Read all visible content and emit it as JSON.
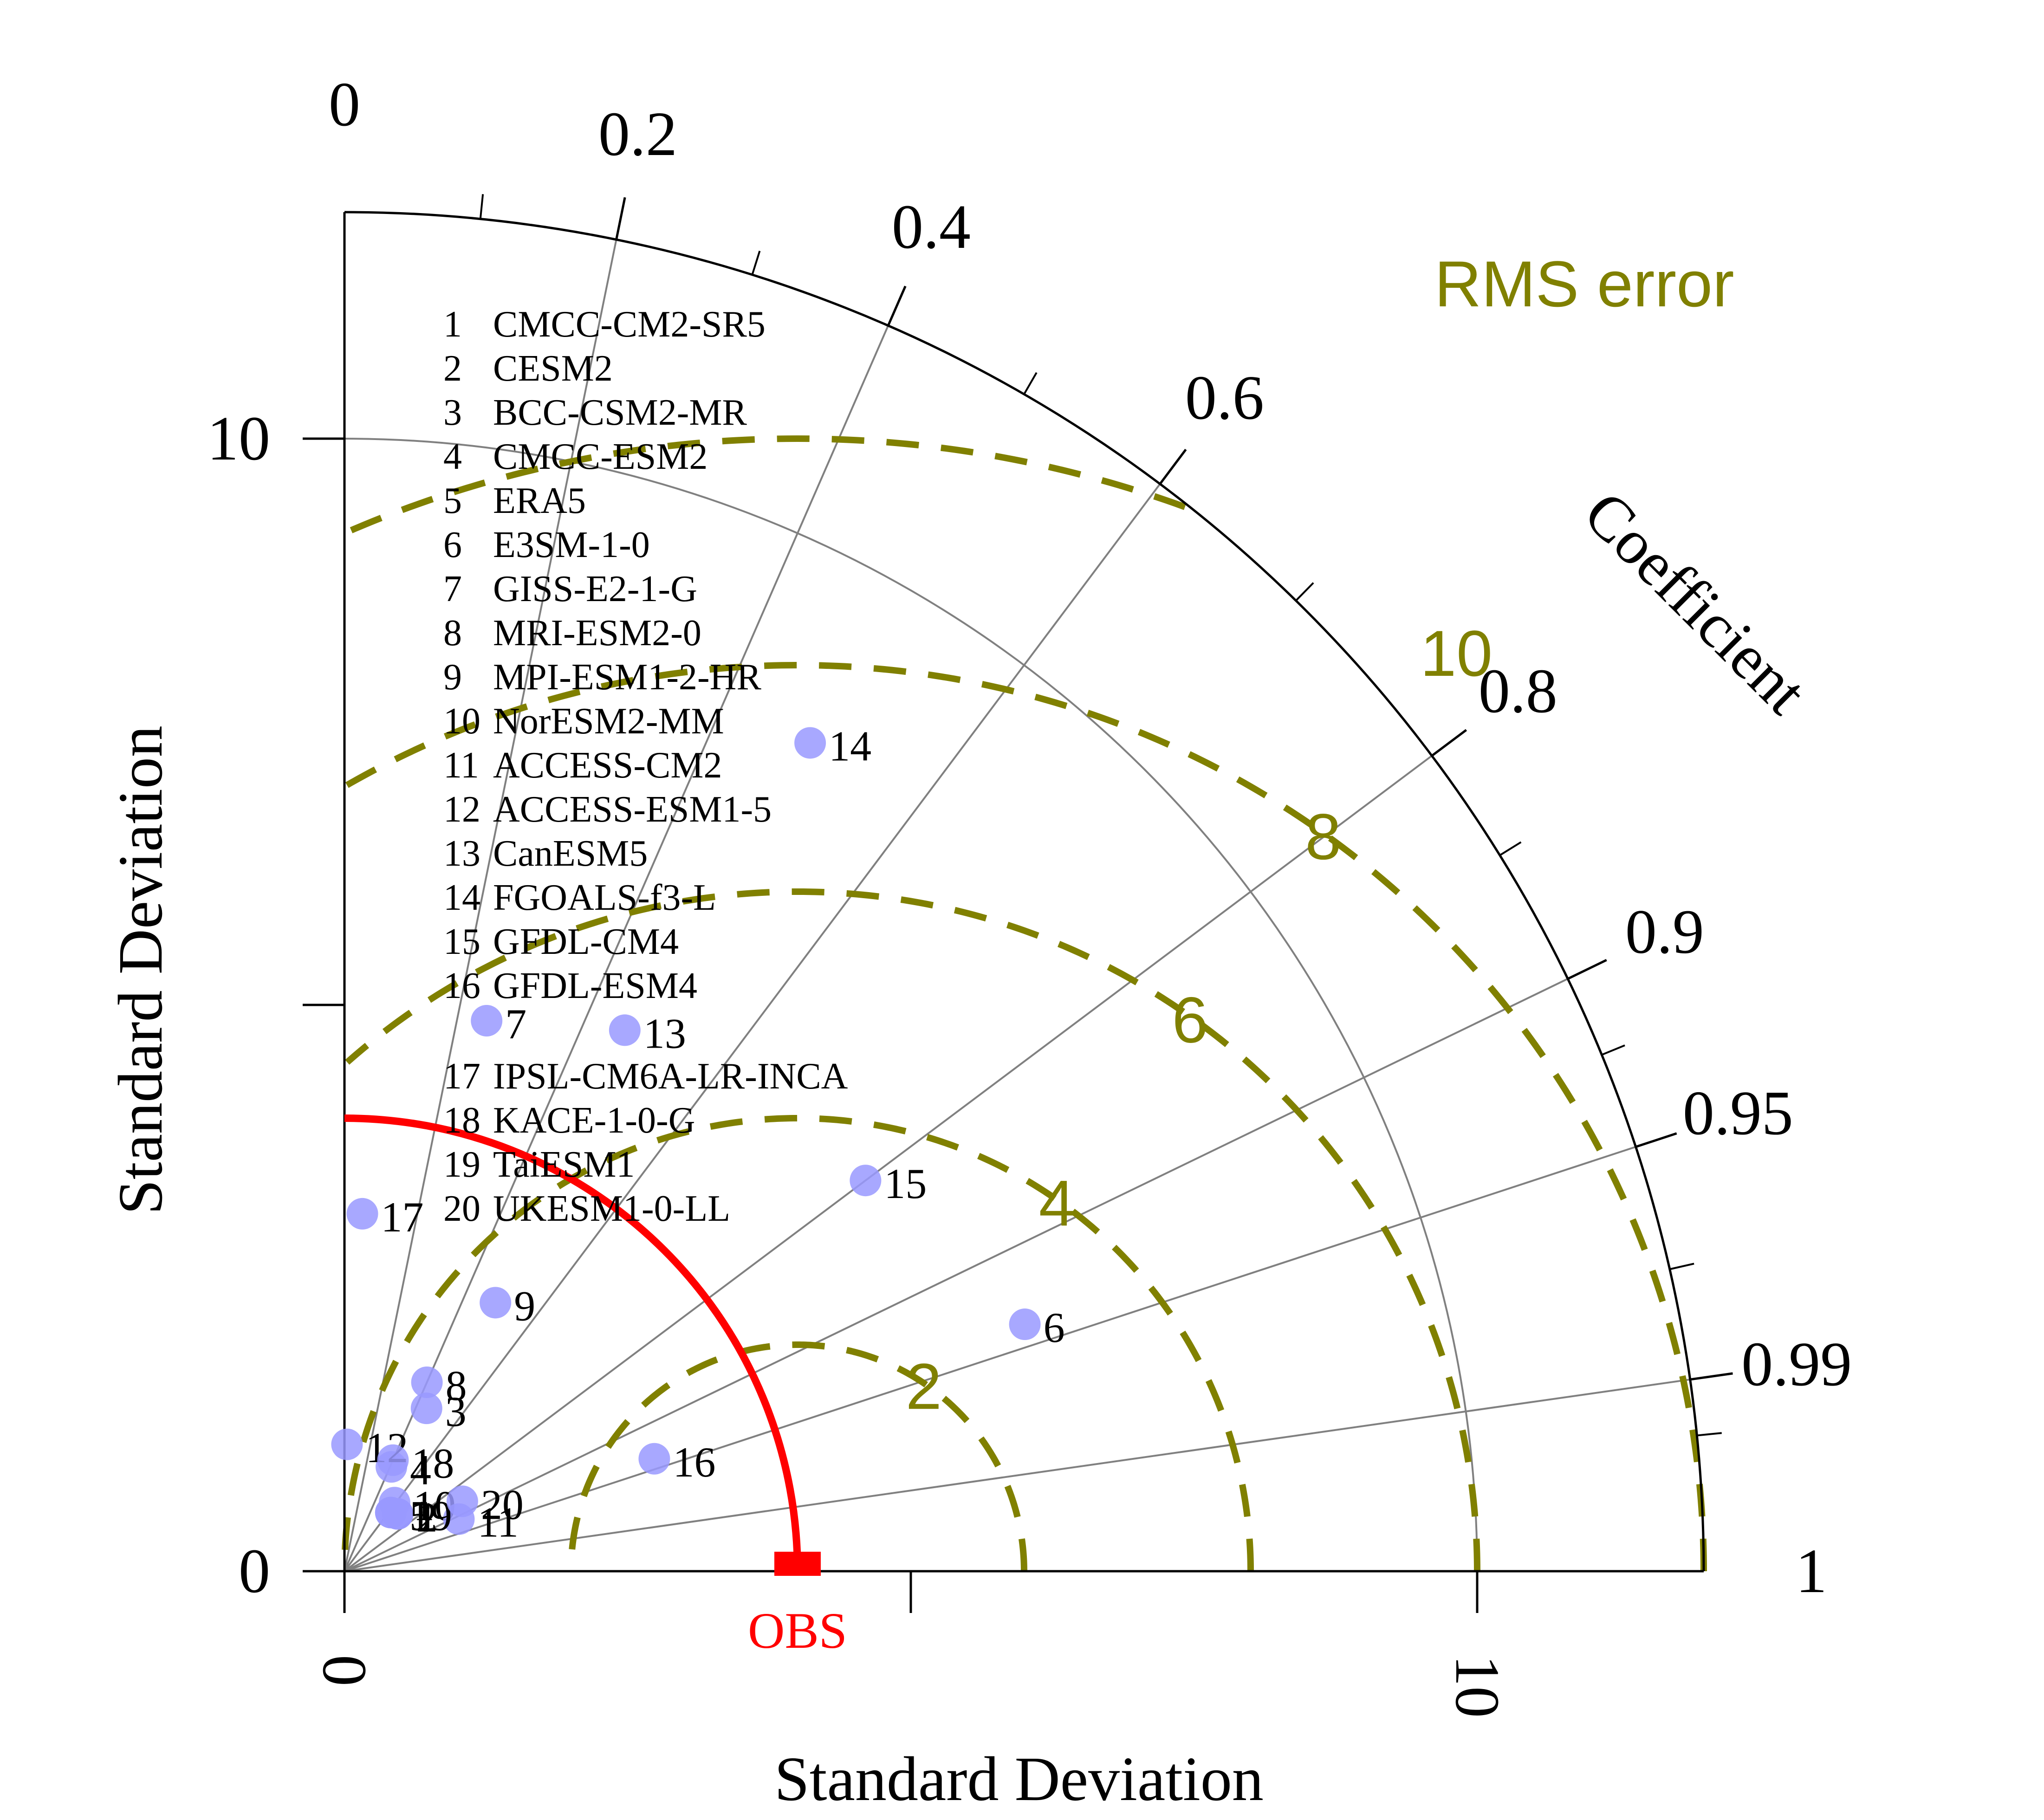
{
  "chart_data": {
    "type": "scatter",
    "title": "",
    "xlabel": "Standard Deviation",
    "ylabel": "Standard Deviation",
    "arc_label": "Coefficient",
    "rms_label": "RMS error",
    "std_max": 12,
    "std_ticks": [
      {
        "value": 0,
        "label": "0"
      },
      {
        "value": 5,
        "label": ""
      },
      {
        "value": 10,
        "label": "10"
      }
    ],
    "std_reference_arc": 10,
    "correlation_lines": [
      {
        "value": 0.2,
        "label": "0.2"
      },
      {
        "value": 0.4,
        "label": "0.4"
      },
      {
        "value": 0.6,
        "label": "0.6"
      },
      {
        "value": 0.8,
        "label": "0.8"
      },
      {
        "value": 0.9,
        "label": "0.9"
      },
      {
        "value": 0.95,
        "label": "0.95"
      },
      {
        "value": 0.99,
        "label": "0.99"
      }
    ],
    "correlation_end_labels": [
      {
        "value": 0,
        "label": "0"
      },
      {
        "value": 1,
        "label": "1"
      }
    ],
    "correlation_minor_ticks": [
      0.1,
      0.3,
      0.5,
      0.7,
      0.85,
      0.925,
      0.975,
      0.995
    ],
    "rms_contours": [
      2,
      4,
      6,
      8,
      10
    ],
    "rms_contour_labels": [
      "2",
      "4",
      "6",
      "8",
      "10"
    ],
    "reference": {
      "label": "OBS",
      "std": 4.0
    },
    "legend": [
      {
        "id": "1",
        "name": "CMCC-CM2-SR5"
      },
      {
        "id": "2",
        "name": "CESM2"
      },
      {
        "id": "3",
        "name": "BCC-CSM2-MR"
      },
      {
        "id": "4",
        "name": "CMCC-ESM2"
      },
      {
        "id": "5",
        "name": "ERA5"
      },
      {
        "id": "6",
        "name": "E3SM-1-0"
      },
      {
        "id": "7",
        "name": "GISS-E2-1-G"
      },
      {
        "id": "8",
        "name": "MRI-ESM2-0"
      },
      {
        "id": "9",
        "name": "MPI-ESM1-2-HR"
      },
      {
        "id": "10",
        "name": "NorESM2-MM"
      },
      {
        "id": "11",
        "name": "ACCESS-CM2"
      },
      {
        "id": "12",
        "name": "ACCESS-ESM1-5"
      },
      {
        "id": "13",
        "name": "CanESM5"
      },
      {
        "id": "14",
        "name": "FGOALS-f3-L"
      },
      {
        "id": "15",
        "name": "GFDL-CM4"
      },
      {
        "id": "16",
        "name": "GFDL-ESM4"
      },
      {
        "id": "17",
        "name": "IPSL-CM6A-LR-INCA"
      },
      {
        "id": "18",
        "name": "KACE-1-0-G"
      },
      {
        "id": "19",
        "name": "TaiESM1"
      },
      {
        "id": "20",
        "name": "UKESM1-0-LL"
      }
    ],
    "models": [
      {
        "id": "1",
        "std": 0.69,
        "corr": 0.68
      },
      {
        "id": "2",
        "std": 0.69,
        "corr": 0.68
      },
      {
        "id": "3",
        "std": 1.61,
        "corr": 0.45
      },
      {
        "id": "4",
        "std": 1.01,
        "corr": 0.41
      },
      {
        "id": "5",
        "std": 0.66,
        "corr": 0.62
      },
      {
        "id": "6",
        "std": 6.39,
        "corr": 0.94
      },
      {
        "id": "7",
        "std": 5.02,
        "corr": 0.25
      },
      {
        "id": "8",
        "std": 1.82,
        "corr": 0.4
      },
      {
        "id": "9",
        "std": 2.72,
        "corr": 0.49
      },
      {
        "id": "10",
        "std": 0.75,
        "corr": 0.59
      },
      {
        "id": "11",
        "std": 1.11,
        "corr": 0.91
      },
      {
        "id": "12",
        "std": 1.12,
        "corr": 0.02
      },
      {
        "id": "13",
        "std": 5.38,
        "corr": 0.46
      },
      {
        "id": "14",
        "std": 8.39,
        "corr": 0.49
      },
      {
        "id": "15",
        "std": 5.75,
        "corr": 0.8
      },
      {
        "id": "16",
        "std": 2.91,
        "corr": 0.94
      },
      {
        "id": "17",
        "std": 3.16,
        "corr": 0.05
      },
      {
        "id": "18",
        "std": 1.07,
        "corr": 0.4
      },
      {
        "id": "19",
        "std": 0.66,
        "corr": 0.62
      },
      {
        "id": "20",
        "std": 1.21,
        "corr": 0.86
      }
    ]
  },
  "colors": {
    "axis": "#000000",
    "grid": "#808080",
    "rms": "#808000",
    "reference": "#ff0000",
    "marker": "#9999ff",
    "marker_dark": "#3333ff"
  }
}
